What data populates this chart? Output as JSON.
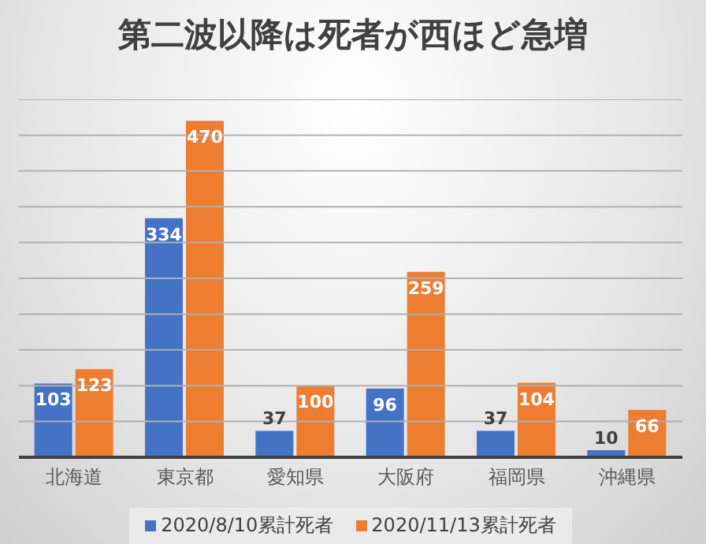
{
  "chart_data": {
    "type": "bar",
    "title": "第二波以降は死者が西ほど急増",
    "categories": [
      "北海道",
      "東京都",
      "愛知県",
      "大阪府",
      "福岡県",
      "沖縄県"
    ],
    "series": [
      {
        "name": "2020/8/10累計死者",
        "color": "#4472c4",
        "values": [
          103,
          334,
          37,
          96,
          37,
          10
        ]
      },
      {
        "name": "2020/11/13累計死者",
        "color": "#ed7d31",
        "values": [
          123,
          470,
          100,
          259,
          104,
          66
        ]
      }
    ],
    "ylim": [
      0,
      500
    ],
    "yticks": [
      {
        "value": 0,
        "label": null
      },
      {
        "value": 50,
        "label": null
      },
      {
        "value": 100,
        "label": null
      },
      {
        "value": 150,
        "label": null
      },
      {
        "value": 200,
        "label": null
      },
      {
        "value": 250,
        "label": null
      },
      {
        "value": 300,
        "label": null
      },
      {
        "value": 350,
        "label": null
      },
      {
        "value": 400,
        "label": null
      },
      {
        "value": 450,
        "label": null
      },
      {
        "value": 500,
        "label": null
      }
    ],
    "grid": "y",
    "legend": "bottom",
    "tick_labels": "x",
    "data_labels": true
  }
}
